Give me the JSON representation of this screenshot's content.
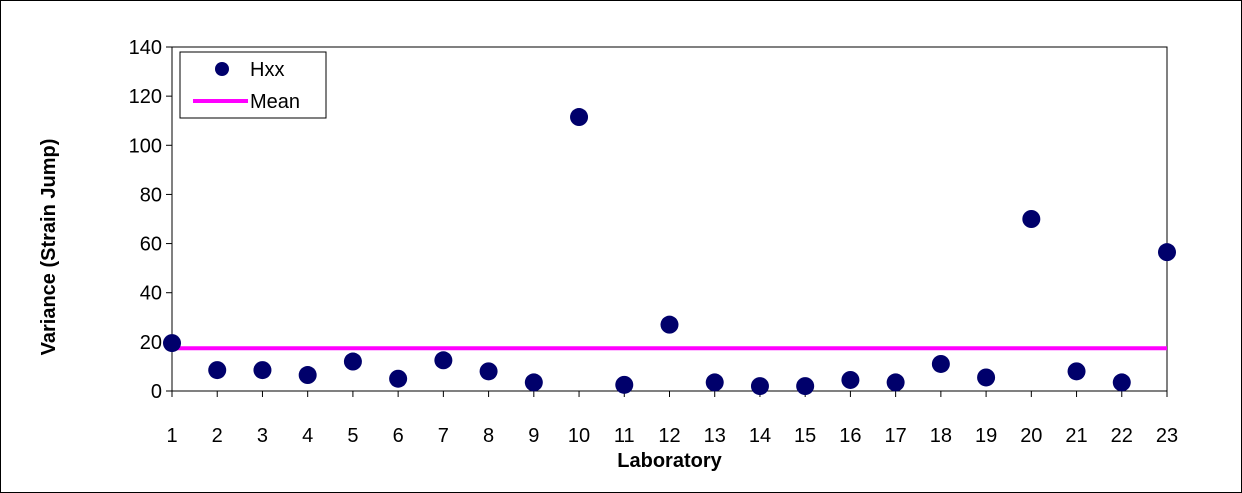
{
  "chart_data": {
    "type": "scatter",
    "xlabel": "Laboratory",
    "ylabel": "Variance (Strain Jump)",
    "x": [
      1,
      2,
      3,
      4,
      5,
      6,
      7,
      8,
      9,
      10,
      11,
      12,
      13,
      14,
      15,
      16,
      17,
      18,
      19,
      20,
      21,
      22,
      23
    ],
    "xlim": [
      1,
      23
    ],
    "ylim": [
      0,
      140
    ],
    "yticks": [
      0,
      20,
      40,
      60,
      80,
      100,
      120,
      140
    ],
    "grid": false,
    "legend_position": "top-left",
    "series": [
      {
        "name": "Hxx",
        "kind": "scatter",
        "color": "#00006b",
        "values": [
          19.5,
          8.5,
          8.5,
          6.5,
          12,
          5,
          12.5,
          8,
          3.5,
          111.5,
          2.5,
          27,
          3.5,
          2,
          2,
          4.5,
          3.5,
          11,
          5.5,
          70,
          8,
          3.5,
          56.5
        ]
      },
      {
        "name": "Mean",
        "kind": "line",
        "color": "#ff00ff",
        "value": 17.4
      }
    ]
  }
}
